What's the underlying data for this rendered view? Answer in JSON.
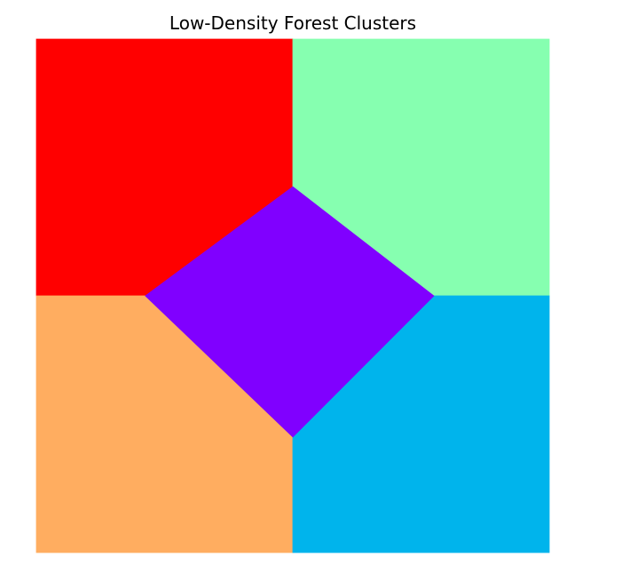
{
  "chart_data": {
    "type": "heatmap",
    "title": "Low-Density Forest Clusters",
    "xlabel": "",
    "ylabel": "",
    "xlim": [
      0,
      4
    ],
    "ylim": [
      0,
      4
    ],
    "grid": false,
    "legend": "none",
    "regions": [
      {
        "id": "top-left",
        "color": "#ff0000",
        "polygon": [
          [
            0,
            4
          ],
          [
            2,
            4
          ],
          [
            2,
            2.85
          ],
          [
            0.85,
            2
          ],
          [
            0,
            2
          ]
        ]
      },
      {
        "id": "top-right",
        "color": "#86ffb0",
        "polygon": [
          [
            2,
            4
          ],
          [
            4,
            4
          ],
          [
            4,
            2
          ],
          [
            3.1,
            2
          ],
          [
            2,
            2.85
          ]
        ]
      },
      {
        "id": "bottom-left",
        "color": "#ffad60",
        "polygon": [
          [
            0,
            2
          ],
          [
            0.85,
            2
          ],
          [
            2,
            0.9
          ],
          [
            2,
            0
          ],
          [
            0,
            0
          ]
        ]
      },
      {
        "id": "bottom-right",
        "color": "#00b4ec",
        "polygon": [
          [
            2,
            0.9
          ],
          [
            3.1,
            2
          ],
          [
            4,
            2
          ],
          [
            4,
            0
          ],
          [
            2,
            0
          ]
        ]
      },
      {
        "id": "center",
        "color": "#8000ff",
        "polygon": [
          [
            2,
            2.85
          ],
          [
            3.1,
            2
          ],
          [
            2,
            0.9
          ],
          [
            0.85,
            2
          ]
        ]
      }
    ]
  }
}
